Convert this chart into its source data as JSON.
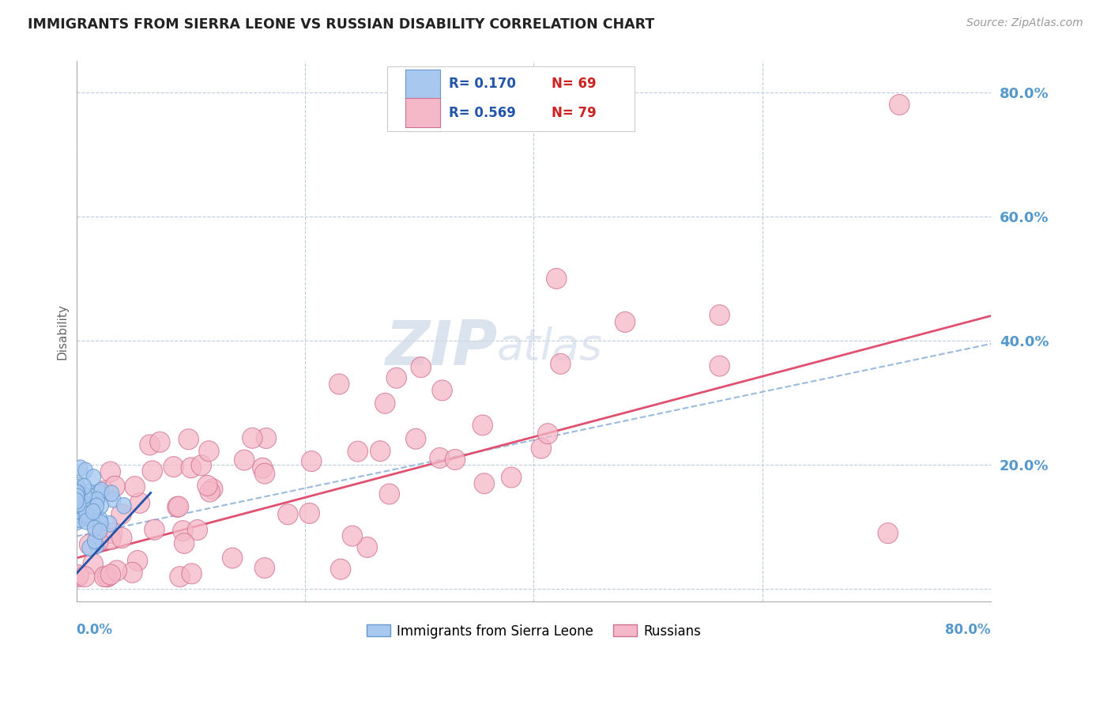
{
  "title": "IMMIGRANTS FROM SIERRA LEONE VS RUSSIAN DISABILITY CORRELATION CHART",
  "source": "Source: ZipAtlas.com",
  "ylabel": "Disability",
  "series1_label": "Immigrants from Sierra Leone",
  "series1_color": "#a8c8f0",
  "series1_edge": "#6699cc",
  "series1_R": "0.170",
  "series1_N": "69",
  "series2_label": "Russians",
  "series2_color": "#f5b8c8",
  "series2_edge": "#d07090",
  "series2_R": "0.569",
  "series2_N": "79",
  "sl_line_color": "#2255aa",
  "ru_line_color": "#e05070",
  "dash_line_color": "#99bbdd",
  "background_color": "#ffffff",
  "grid_color": "#bbccdd",
  "title_color": "#222222",
  "axis_label_color": "#5599cc",
  "legend_text_color": "#2255aa",
  "xrange": [
    0.0,
    0.8
  ],
  "yrange": [
    -0.02,
    0.85
  ],
  "yticks": [
    0.0,
    0.2,
    0.4,
    0.6,
    0.8
  ],
  "watermark_color": "#ccd8e8"
}
